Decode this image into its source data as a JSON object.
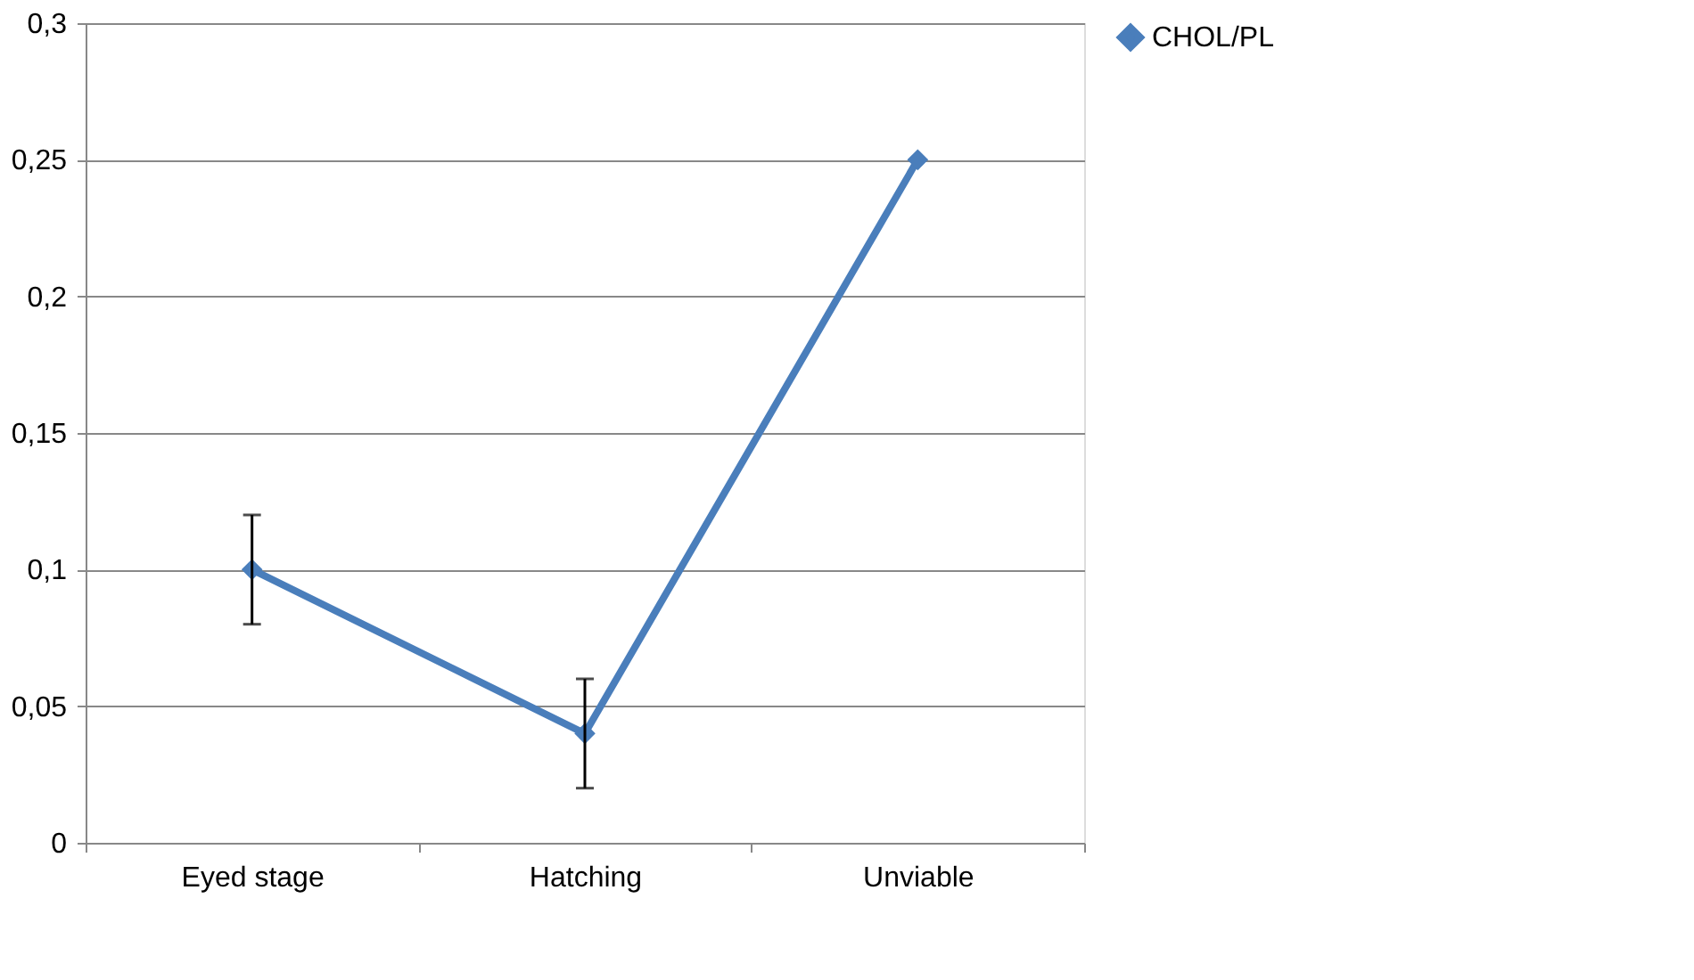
{
  "chart_data": {
    "type": "line",
    "categories": [
      "Eyed stage",
      "Hatching",
      "Unviable"
    ],
    "series": [
      {
        "name": "CHOL/PL",
        "color": "#4a7ebb",
        "values": [
          0.1,
          0.04,
          0.25
        ],
        "errors": [
          0.02,
          0.02,
          null
        ]
      }
    ],
    "ylim": [
      0,
      0.3
    ],
    "yticks": [
      0,
      {
        "value": 0.05,
        "label": "0,05"
      },
      {
        "value": 0.1,
        "label": "0,1"
      },
      {
        "value": 0.15,
        "label": "0,15"
      },
      {
        "value": 0.2,
        "label": "0,2"
      },
      {
        "value": 0.25,
        "label": "0,25"
      },
      {
        "value": 0.3,
        "label": "0,3"
      }
    ],
    "grid": "y",
    "legend": "right",
    "marker": "diamond",
    "line_style": "solid"
  }
}
